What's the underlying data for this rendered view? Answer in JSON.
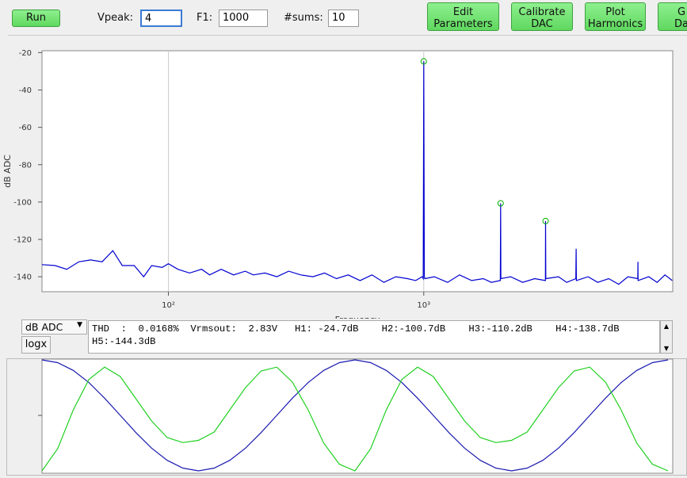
{
  "toolbar": {
    "run": "Run",
    "vpeak_label": "Vpeak:",
    "vpeak": "4",
    "f1_label": "F1:",
    "f1": "1000",
    "sums_label": "#sums:",
    "sums": "10",
    "buttons": [
      [
        "Edit",
        "Parameters"
      ],
      [
        "Calibrate",
        "DAC"
      ],
      [
        "Plot",
        "Harmonics"
      ],
      [
        "G",
        "Da"
      ]
    ]
  },
  "spectrum": {
    "type": "line",
    "xlabel": "Frequency",
    "ylabel": "dB ADC",
    "log_x": true,
    "grid_x": true,
    "xlim": [
      32,
      9440
    ],
    "ylim": [
      -148,
      -19
    ],
    "xticks": [
      {
        "value": 100,
        "label": "10²"
      },
      {
        "value": 1000,
        "label": "10³"
      }
    ],
    "yticks": [
      -20,
      -40,
      -60,
      -80,
      -100,
      -120,
      -140
    ],
    "series": [
      {
        "color": "#0000d0",
        "x": [
          32,
          36,
          40,
          44.6,
          49.6,
          55,
          60.6,
          66,
          73.5,
          80,
          86,
          94.5,
          100,
          109,
          121,
          135,
          145,
          161,
          180,
          200,
          215,
          239,
          266,
          296,
          330,
          368,
          409,
          455,
          506,
          563,
          627,
          698,
          777,
          864,
          930,
          985,
          995,
          1000,
          1005,
          1010,
          1100,
          1240,
          1380,
          1540,
          1710,
          1840,
          1995,
          2000,
          2005,
          2190,
          2440,
          2720,
          2995,
          3000,
          3005,
          3370,
          3630,
          3940,
          3950,
          3960,
          4400,
          4800,
          5300,
          5800,
          6300,
          6890,
          6900,
          6910,
          7600,
          8200,
          8800,
          9400
        ],
        "values": [
          -133.5,
          -134,
          -136,
          -132,
          -131,
          -132,
          -126,
          -134,
          -134,
          -140,
          -134,
          -135,
          -133,
          -136,
          -138,
          -136,
          -139,
          -136,
          -139,
          -137,
          -139,
          -138,
          -140,
          -137,
          -139,
          -140,
          -138,
          -141,
          -139,
          -142,
          -139,
          -143,
          -140,
          -141,
          -142,
          -140,
          -141,
          -24.7,
          -140,
          -141,
          -140,
          -143,
          -139,
          -142,
          -141,
          -143,
          -142,
          -100.7,
          -141,
          -140,
          -143,
          -141,
          -142,
          -110.2,
          -141,
          -140,
          -143,
          -141,
          -125,
          -142,
          -140,
          -143,
          -141,
          -144,
          -140,
          -141,
          -132,
          -142,
          -140,
          -143,
          -139,
          -142
        ]
      }
    ],
    "markers": {
      "color": "#00b000",
      "x": [
        1000,
        2000,
        3000
      ],
      "values": [
        -24.7,
        -100.7,
        -110.2
      ]
    }
  },
  "unit_select": "dB ADC",
  "logx_button": "logx",
  "status_lines": [
    "THD  :  0.0168%  Vrmsout:  2.83V   H1: -24.7dB    H2:-100.7dB    H3:-110.2dB    H4:-138.7dB",
    "H5:-144.3dB"
  ],
  "waveform": {
    "type": "line",
    "xlim": [
      0,
      2.015
    ],
    "ylim": [
      -1,
      1
    ],
    "yticks": [
      0
    ],
    "x": [
      0,
      0.05,
      0.1,
      0.15,
      0.2,
      0.25,
      0.3,
      0.35,
      0.4,
      0.45,
      0.5,
      0.55,
      0.6,
      0.65,
      0.7,
      0.75,
      0.8,
      0.85,
      0.9,
      0.95,
      1,
      1.05,
      1.1,
      1.15,
      1.2,
      1.25,
      1.3,
      1.35,
      1.4,
      1.45,
      1.5,
      1.55,
      1.6,
      1.65,
      1.7,
      1.75,
      1.8,
      1.85,
      1.9,
      1.95,
      2
    ],
    "series": [
      {
        "color": "#1a1ab0",
        "values": [
          1,
          0.95,
          0.81,
          0.59,
          0.31,
          0,
          -0.31,
          -0.59,
          -0.81,
          -0.95,
          -1,
          -0.95,
          -0.81,
          -0.59,
          -0.31,
          0,
          0.31,
          0.59,
          0.81,
          0.95,
          1,
          0.95,
          0.81,
          0.59,
          0.31,
          0,
          -0.31,
          -0.59,
          -0.81,
          -0.95,
          -1,
          -0.95,
          -0.81,
          -0.59,
          -0.31,
          0,
          0.31,
          0.59,
          0.81,
          0.95,
          1
        ]
      },
      {
        "color": "#20d020",
        "values": [
          -1,
          -0.6,
          0.1,
          0.65,
          0.87,
          0.7,
          0.3,
          -0.1,
          -0.4,
          -0.49,
          -0.45,
          -0.3,
          0.1,
          0.5,
          0.8,
          0.87,
          0.6,
          0.1,
          -0.5,
          -0.88,
          -1,
          -0.6,
          0.1,
          0.65,
          0.87,
          0.7,
          0.3,
          -0.1,
          -0.4,
          -0.49,
          -0.45,
          -0.3,
          0.1,
          0.5,
          0.8,
          0.87,
          0.6,
          0.1,
          -0.5,
          -0.88,
          -1
        ]
      }
    ]
  }
}
